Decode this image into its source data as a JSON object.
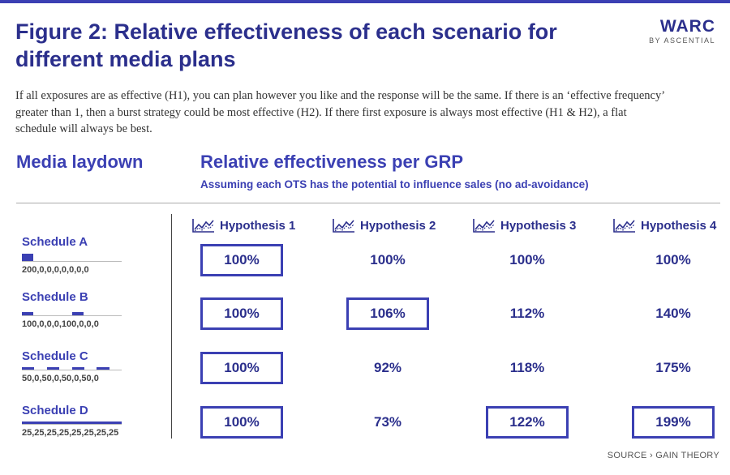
{
  "header": {
    "title": "Figure 2: Relative effectiveness of each scenario for different media plans",
    "logo_main": "WARC",
    "logo_sub": "BY ASCENTIAL"
  },
  "intro": "If all exposures are as effective (H1), you can plan however you like and the response will be the same. If there is an ‘effective frequency’ greater than 1, then a burst strategy could be most effective (H2). If there first exposure is always most effective (H1 & H2), a flat schedule will always be best.",
  "left_heading": "Media laydown",
  "right_heading": "Relative effectiveness per GRP",
  "right_subheading": "Assuming each OTS has the potential to influence sales (no ad-avoidance)",
  "source": "SOURCE › GAIN THEORY",
  "colors": {
    "accent": "#3b40b3",
    "dark": "#2b2f8c"
  },
  "chart_data": {
    "type": "table",
    "columns": [
      "Hypothesis 1",
      "Hypothesis 2",
      "Hypothesis 3",
      "Hypothesis 4"
    ],
    "column_icon": "line-chart-icon",
    "rows": [
      {
        "name": "Schedule A",
        "laydown_text": "200,0,0,0,0,0,0,0",
        "laydown": [
          200,
          0,
          0,
          0,
          0,
          0,
          0,
          0
        ],
        "values": [
          "100%",
          "100%",
          "100%",
          "100%"
        ],
        "highlighted": [
          true,
          false,
          false,
          false
        ]
      },
      {
        "name": "Schedule B",
        "laydown_text": "100,0,0,0,100,0,0,0",
        "laydown": [
          100,
          0,
          0,
          0,
          100,
          0,
          0,
          0
        ],
        "values": [
          "100%",
          "106%",
          "112%",
          "140%"
        ],
        "highlighted": [
          true,
          true,
          false,
          false
        ]
      },
      {
        "name": "Schedule C",
        "laydown_text": "50,0,50,0,50,0,50,0",
        "laydown": [
          50,
          0,
          50,
          0,
          50,
          0,
          50,
          0
        ],
        "values": [
          "100%",
          "92%",
          "118%",
          "175%"
        ],
        "highlighted": [
          true,
          false,
          false,
          false
        ]
      },
      {
        "name": "Schedule D",
        "laydown_text": "25,25,25,25,25,25,25,25",
        "laydown": [
          25,
          25,
          25,
          25,
          25,
          25,
          25,
          25
        ],
        "values": [
          "100%",
          "73%",
          "122%",
          "199%"
        ],
        "highlighted": [
          true,
          false,
          true,
          true
        ]
      }
    ]
  }
}
